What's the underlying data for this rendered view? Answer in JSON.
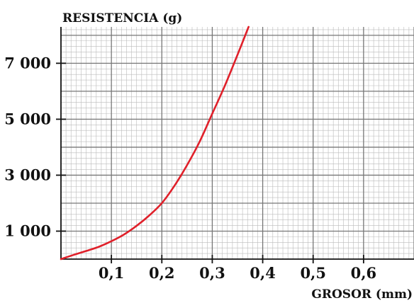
{
  "chart_data": {
    "type": "line",
    "ylabel": "RESISTENCIA (g)",
    "xlabel": "GROSOR (mm)",
    "xlim": [
      0,
      0.7
    ],
    "ylim": [
      0,
      8300
    ],
    "x_ticks": [
      0.1,
      0.2,
      0.3,
      0.4,
      0.5,
      0.6
    ],
    "x_tick_labels": [
      "0,1",
      "0,2",
      "0,3",
      "0,4",
      "0,5",
      "0,6"
    ],
    "y_ticks": [
      1000,
      3000,
      5000,
      7000
    ],
    "y_tick_labels": [
      "1 000",
      "3 000",
      "5 000",
      "7 000"
    ],
    "grid": true,
    "series": [
      {
        "color": "#e0202a",
        "x": [
          0.0,
          0.025,
          0.05,
          0.075,
          0.1,
          0.125,
          0.15,
          0.175,
          0.2,
          0.225,
          0.25,
          0.275,
          0.3,
          0.325,
          0.35,
          0.372
        ],
        "y": [
          0,
          150,
          290,
          440,
          640,
          880,
          1190,
          1560,
          2000,
          2620,
          3360,
          4200,
          5200,
          6200,
          7300,
          8300
        ]
      }
    ]
  }
}
